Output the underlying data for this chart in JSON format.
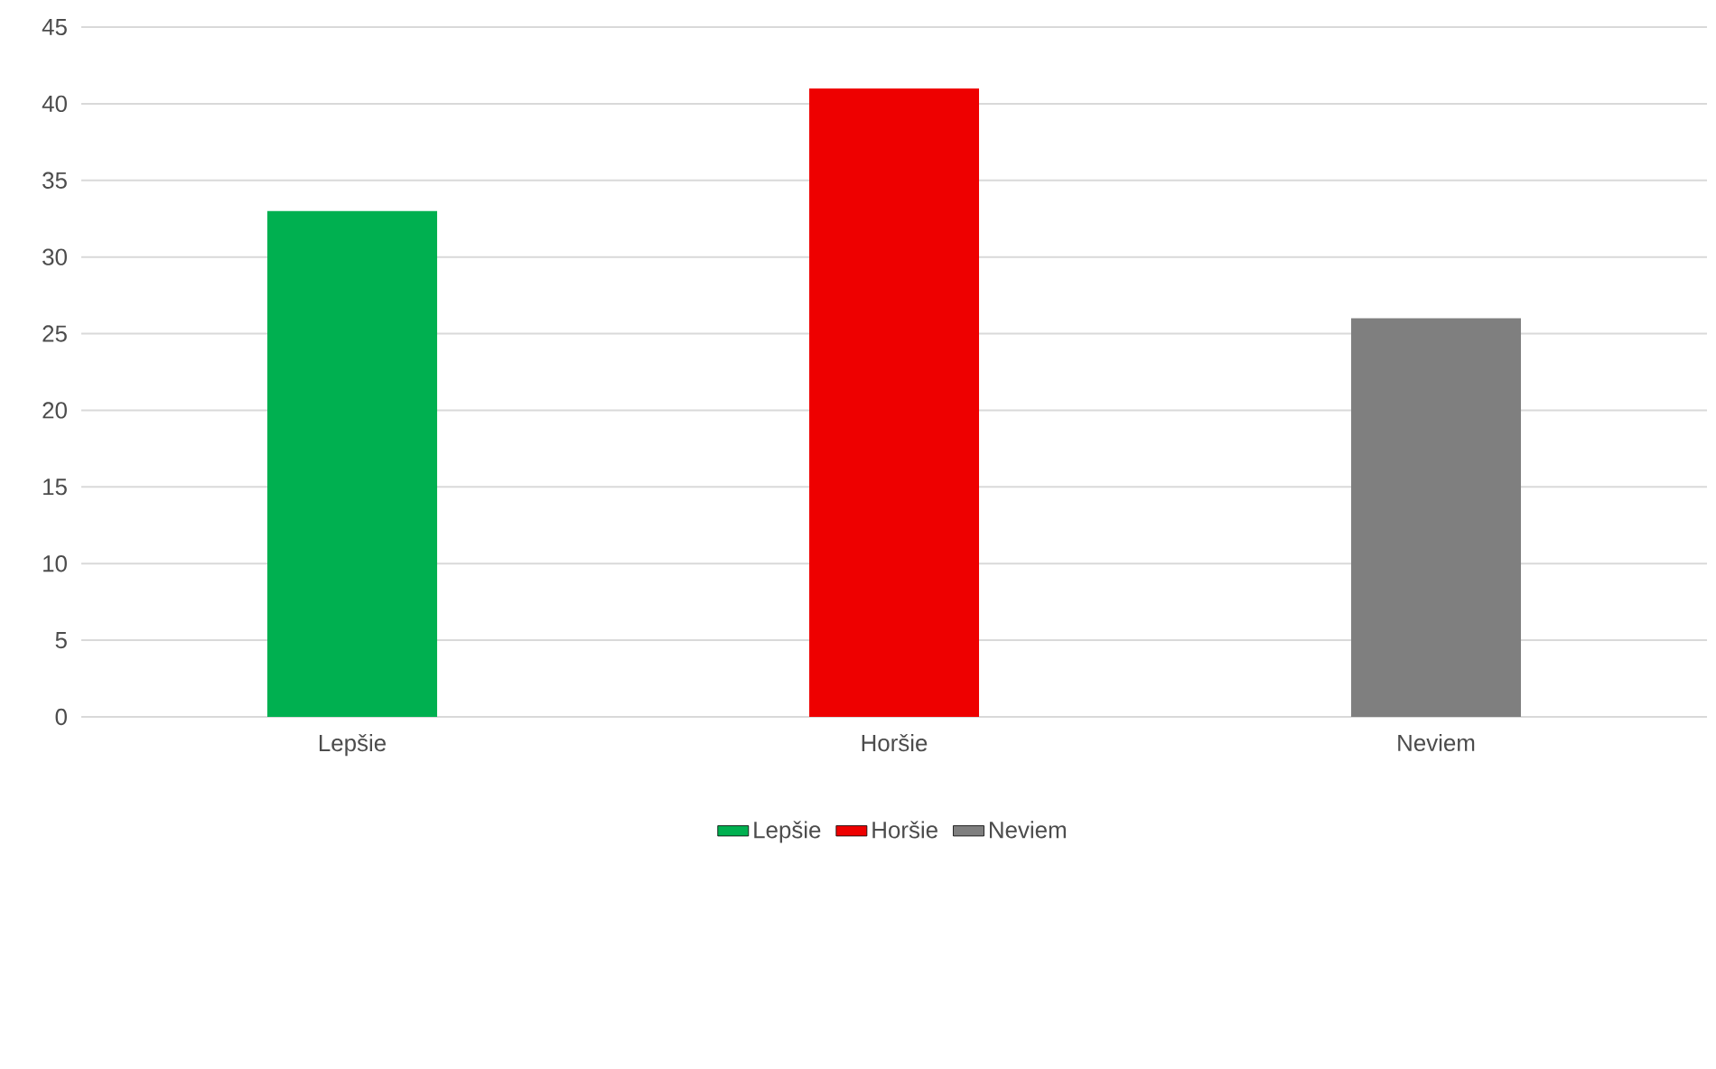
{
  "chart_data": {
    "type": "bar",
    "categories": [
      "Lepšie",
      "Horšie",
      "Neviem"
    ],
    "series": [
      {
        "name": "Lepšie",
        "color": "#00b050",
        "values": [
          33,
          null,
          null
        ]
      },
      {
        "name": "Horšie",
        "color": "#ee0000",
        "values": [
          null,
          41,
          null
        ]
      },
      {
        "name": "Neviem",
        "color": "#7f7f7f",
        "values": [
          null,
          null,
          26
        ]
      }
    ],
    "ylim": [
      0,
      45
    ],
    "yticks": [
      0,
      5,
      10,
      15,
      20,
      25,
      30,
      35,
      40,
      45
    ],
    "grid": "y",
    "legend": "bottom"
  }
}
